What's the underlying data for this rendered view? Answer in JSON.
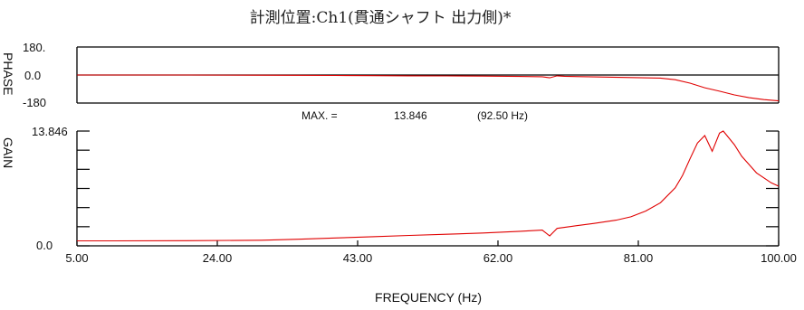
{
  "title": "計測位置:Ch1(貫通シャフト 出力側)*",
  "chart_data": [
    {
      "type": "line",
      "name": "phase",
      "ylabel": "PHASE",
      "xlim": [
        5,
        100
      ],
      "ylim": [
        -180,
        180
      ],
      "y_ticks": [
        "180.",
        "0.0",
        "-180"
      ],
      "x": [
        5,
        10,
        20,
        30,
        35,
        40,
        45,
        50,
        55,
        60,
        65,
        68,
        69,
        70,
        71,
        75,
        80,
        84,
        86,
        88,
        90,
        92,
        94,
        96,
        98,
        100
      ],
      "y": [
        0,
        0,
        0,
        -1,
        -2,
        -3,
        -4,
        -5,
        -6,
        -7,
        -9,
        -11,
        -18,
        -5,
        -8,
        -12,
        -16,
        -20,
        -30,
        -52,
        -82,
        -104,
        -128,
        -146,
        -158,
        -166
      ],
      "color": "#e00000"
    },
    {
      "type": "line",
      "name": "gain",
      "ylabel": "GAIN",
      "xlim": [
        5,
        100
      ],
      "ylim": [
        0,
        13.846
      ],
      "y_ticks": [
        "13.846",
        "0.0"
      ],
      "x_ticks": [
        "5.00",
        "24.00",
        "43.00",
        "62.00",
        "81.00",
        "100.00"
      ],
      "xlabel": "FREQUENCY (Hz)",
      "x": [
        5,
        10,
        20,
        30,
        35,
        40,
        45,
        50,
        55,
        60,
        65,
        68,
        69,
        70,
        72,
        75,
        78,
        80,
        82,
        84,
        86,
        87,
        88,
        89,
        90,
        91,
        92,
        92.5,
        93,
        94,
        95,
        96,
        97,
        98,
        99,
        100
      ],
      "y": [
        0.6,
        0.6,
        0.62,
        0.68,
        0.8,
        0.95,
        1.1,
        1.25,
        1.4,
        1.55,
        1.75,
        1.9,
        1.2,
        2.1,
        2.35,
        2.7,
        3.1,
        3.5,
        4.2,
        5.2,
        7.0,
        8.5,
        10.5,
        12.4,
        13.3,
        11.4,
        13.6,
        13.846,
        13.3,
        12.2,
        10.8,
        9.8,
        8.8,
        8.2,
        7.6,
        7.2
      ],
      "color": "#e00000"
    }
  ],
  "max_readout": {
    "label": "MAX. =",
    "value": "13.846",
    "freq": "(92.50  Hz)"
  }
}
